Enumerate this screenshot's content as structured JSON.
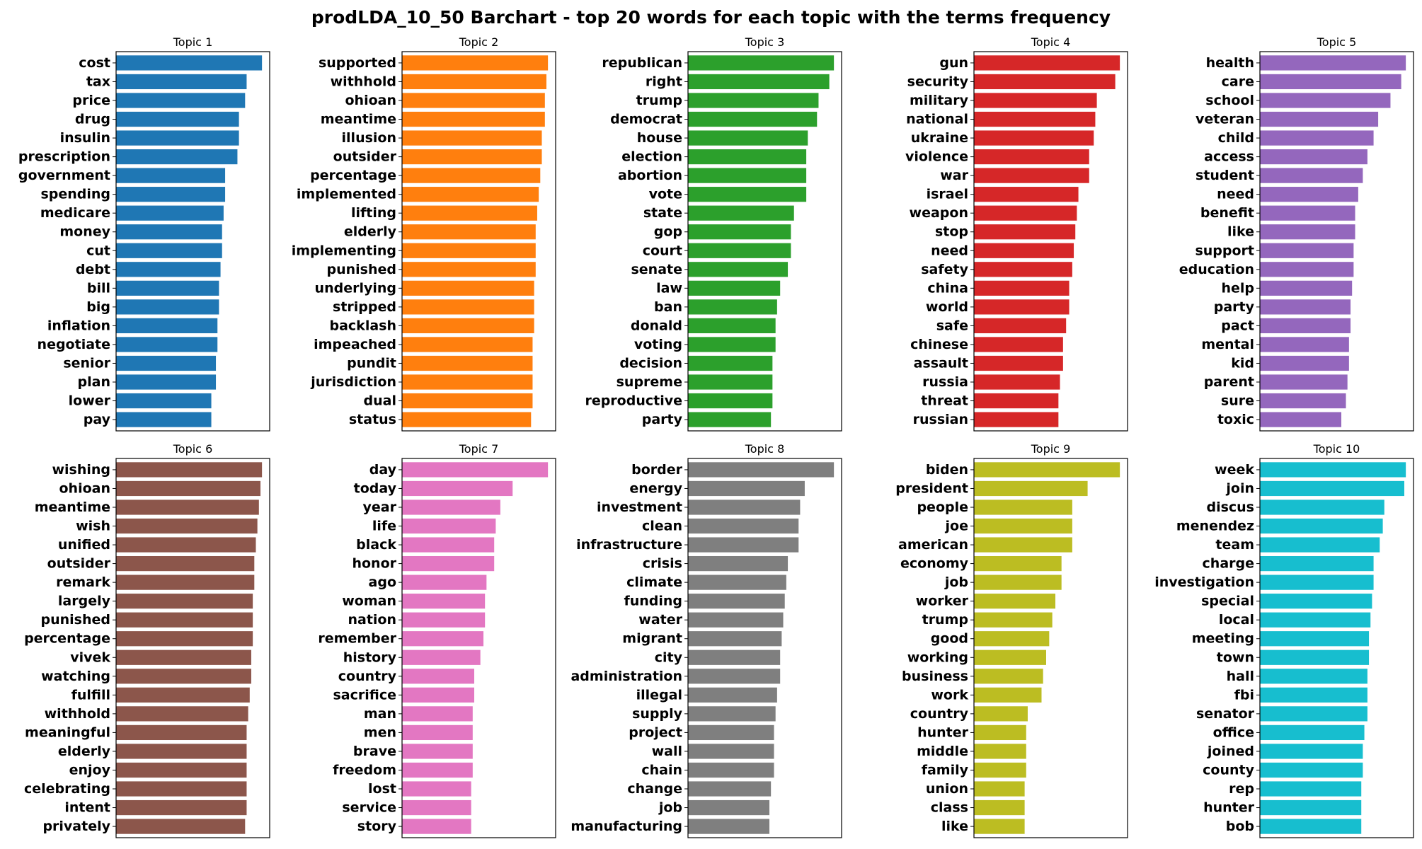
{
  "title": "prodLDA_10_50 Barchart - top 20 words for each topic with the terms frequency",
  "chart_data": [
    {
      "type": "bar",
      "orientation": "horizontal",
      "title": "Topic 1",
      "color": "#1f77b4",
      "categories": [
        "cost",
        "tax",
        "price",
        "drug",
        "insulin",
        "prescription",
        "government",
        "spending",
        "medicare",
        "money",
        "cut",
        "debt",
        "bill",
        "big",
        "inflation",
        "negotiate",
        "senior",
        "plan",
        "lower",
        "pay"
      ],
      "values": [
        0.95,
        0.85,
        0.84,
        0.8,
        0.8,
        0.79,
        0.71,
        0.71,
        0.7,
        0.69,
        0.69,
        0.68,
        0.67,
        0.67,
        0.66,
        0.66,
        0.65,
        0.65,
        0.62,
        0.62
      ],
      "xlim": [
        0,
        1
      ],
      "grid": false
    },
    {
      "type": "bar",
      "orientation": "horizontal",
      "title": "Topic 2",
      "color": "#ff7f0e",
      "categories": [
        "supported",
        "withhold",
        "ohioan",
        "meantime",
        "illusion",
        "outsider",
        "percentage",
        "implemented",
        "lifting",
        "elderly",
        "implementing",
        "punished",
        "underlying",
        "stripped",
        "backlash",
        "impeached",
        "pundit",
        "jurisdiction",
        "dual",
        "status"
      ],
      "values": [
        0.95,
        0.94,
        0.93,
        0.93,
        0.91,
        0.91,
        0.9,
        0.89,
        0.88,
        0.87,
        0.87,
        0.87,
        0.86,
        0.86,
        0.86,
        0.85,
        0.85,
        0.85,
        0.85,
        0.84
      ],
      "xlim": [
        0,
        1
      ],
      "grid": false
    },
    {
      "type": "bar",
      "orientation": "horizontal",
      "title": "Topic 3",
      "color": "#2ca02c",
      "categories": [
        "republican",
        "right",
        "trump",
        "democrat",
        "house",
        "election",
        "abortion",
        "vote",
        "state",
        "gop",
        "court",
        "senate",
        "law",
        "ban",
        "donald",
        "voting",
        "decision",
        "supreme",
        "reproductive",
        "party"
      ],
      "values": [
        0.95,
        0.92,
        0.85,
        0.84,
        0.78,
        0.77,
        0.77,
        0.77,
        0.69,
        0.67,
        0.67,
        0.65,
        0.6,
        0.58,
        0.57,
        0.57,
        0.55,
        0.55,
        0.55,
        0.54
      ],
      "xlim": [
        0,
        1
      ],
      "grid": false
    },
    {
      "type": "bar",
      "orientation": "horizontal",
      "title": "Topic 4",
      "color": "#d62728",
      "categories": [
        "gun",
        "security",
        "military",
        "national",
        "ukraine",
        "violence",
        "war",
        "israel",
        "weapon",
        "stop",
        "need",
        "safety",
        "china",
        "world",
        "safe",
        "chinese",
        "assault",
        "russia",
        "threat",
        "russian"
      ],
      "values": [
        0.95,
        0.92,
        0.8,
        0.79,
        0.78,
        0.75,
        0.75,
        0.68,
        0.67,
        0.66,
        0.65,
        0.64,
        0.62,
        0.62,
        0.6,
        0.58,
        0.58,
        0.56,
        0.55,
        0.55
      ],
      "xlim": [
        0,
        1
      ],
      "grid": false
    },
    {
      "type": "bar",
      "orientation": "horizontal",
      "title": "Topic 5",
      "color": "#9467bd",
      "categories": [
        "health",
        "care",
        "school",
        "veteran",
        "child",
        "access",
        "student",
        "need",
        "benefit",
        "like",
        "support",
        "education",
        "help",
        "party",
        "pact",
        "mental",
        "kid",
        "parent",
        "sure",
        "toxic"
      ],
      "values": [
        0.95,
        0.92,
        0.85,
        0.77,
        0.74,
        0.7,
        0.67,
        0.64,
        0.62,
        0.62,
        0.61,
        0.61,
        0.6,
        0.59,
        0.59,
        0.58,
        0.58,
        0.57,
        0.56,
        0.53
      ],
      "xlim": [
        0,
        1
      ],
      "grid": false
    },
    {
      "type": "bar",
      "orientation": "horizontal",
      "title": "Topic 6",
      "color": "#8c564b",
      "categories": [
        "wishing",
        "ohioan",
        "meantime",
        "wish",
        "unified",
        "outsider",
        "remark",
        "largely",
        "punished",
        "percentage",
        "vivek",
        "watching",
        "fulfill",
        "withhold",
        "meaningful",
        "elderly",
        "enjoy",
        "celebrating",
        "intent",
        "privately"
      ],
      "values": [
        0.95,
        0.94,
        0.93,
        0.92,
        0.91,
        0.9,
        0.9,
        0.89,
        0.89,
        0.89,
        0.88,
        0.88,
        0.87,
        0.86,
        0.85,
        0.85,
        0.85,
        0.85,
        0.85,
        0.84
      ],
      "xlim": [
        0,
        1
      ],
      "grid": false
    },
    {
      "type": "bar",
      "orientation": "horizontal",
      "title": "Topic 7",
      "color": "#e377c2",
      "categories": [
        "day",
        "today",
        "year",
        "life",
        "black",
        "honor",
        "ago",
        "woman",
        "nation",
        "remember",
        "history",
        "country",
        "sacrifice",
        "man",
        "men",
        "brave",
        "freedom",
        "lost",
        "service",
        "story"
      ],
      "values": [
        0.95,
        0.72,
        0.64,
        0.61,
        0.6,
        0.6,
        0.55,
        0.54,
        0.54,
        0.53,
        0.51,
        0.47,
        0.47,
        0.46,
        0.46,
        0.46,
        0.46,
        0.45,
        0.45,
        0.45
      ],
      "xlim": [
        0,
        1
      ],
      "grid": false
    },
    {
      "type": "bar",
      "orientation": "horizontal",
      "title": "Topic 8",
      "color": "#7f7f7f",
      "categories": [
        "border",
        "energy",
        "investment",
        "clean",
        "infrastructure",
        "crisis",
        "climate",
        "funding",
        "water",
        "migrant",
        "city",
        "administration",
        "illegal",
        "supply",
        "project",
        "wall",
        "chain",
        "change",
        "job",
        "manufacturing"
      ],
      "values": [
        0.95,
        0.76,
        0.73,
        0.72,
        0.72,
        0.65,
        0.64,
        0.63,
        0.62,
        0.61,
        0.6,
        0.6,
        0.58,
        0.57,
        0.56,
        0.56,
        0.56,
        0.54,
        0.53,
        0.53
      ],
      "xlim": [
        0,
        1
      ],
      "grid": false
    },
    {
      "type": "bar",
      "orientation": "horizontal",
      "title": "Topic 9",
      "color": "#bcbd22",
      "categories": [
        "biden",
        "president",
        "people",
        "joe",
        "american",
        "economy",
        "job",
        "worker",
        "trump",
        "good",
        "working",
        "business",
        "work",
        "country",
        "hunter",
        "middle",
        "family",
        "union",
        "class",
        "like"
      ],
      "values": [
        0.95,
        0.74,
        0.64,
        0.64,
        0.64,
        0.57,
        0.57,
        0.53,
        0.51,
        0.49,
        0.47,
        0.45,
        0.44,
        0.35,
        0.34,
        0.34,
        0.34,
        0.33,
        0.33,
        0.33
      ],
      "xlim": [
        0,
        1
      ],
      "grid": false
    },
    {
      "type": "bar",
      "orientation": "horizontal",
      "title": "Topic 10",
      "color": "#17becf",
      "categories": [
        "week",
        "join",
        "discus",
        "menendez",
        "team",
        "charge",
        "investigation",
        "special",
        "local",
        "meeting",
        "town",
        "hall",
        "fbi",
        "senator",
        "office",
        "joined",
        "county",
        "rep",
        "hunter",
        "bob"
      ],
      "values": [
        0.95,
        0.94,
        0.81,
        0.8,
        0.78,
        0.74,
        0.74,
        0.73,
        0.72,
        0.71,
        0.71,
        0.7,
        0.7,
        0.7,
        0.68,
        0.67,
        0.67,
        0.66,
        0.66,
        0.66
      ],
      "xlim": [
        0,
        1
      ],
      "grid": false
    }
  ]
}
